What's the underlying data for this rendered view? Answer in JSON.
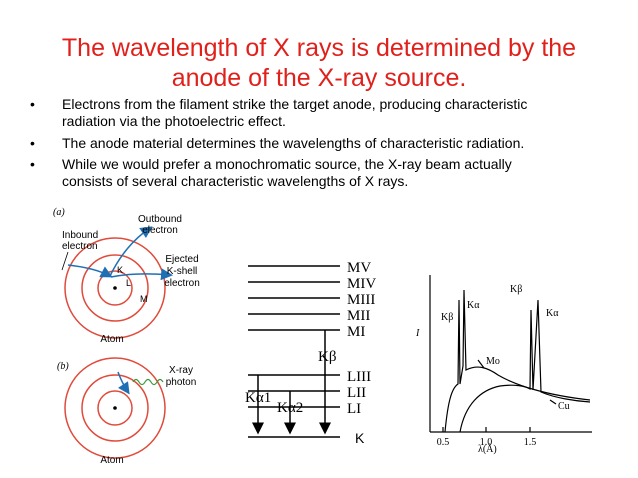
{
  "title": {
    "lines": [
      "The wavelength of X rays is determined by the",
      "anode of the X-ray source."
    ]
  },
  "bullets": [
    {
      "lines": [
        "Electrons from the filament strike the target anode, producing characteristic",
        "radiation via the photoelectric effect."
      ]
    },
    {
      "lines": [
        "The anode material determines the wavelengths of characteristic radiation."
      ]
    },
    {
      "lines": [
        "While we would prefer a monochromatic source, the X-ray beam actually",
        "consists of several characteristic wavelengths of X rays."
      ]
    }
  ],
  "diagram_a": {
    "tag": "(a)",
    "inbound": [
      "Inbound",
      "electron"
    ],
    "outbound": [
      "Outbound",
      "electron"
    ],
    "ejected": [
      "Ejected",
      "K-shell",
      "electron"
    ],
    "shells": [
      "K",
      "L",
      "M"
    ],
    "atom": "Atom"
  },
  "diagram_b": {
    "tag": "(b)",
    "photon": [
      "X-ray",
      "photon"
    ],
    "atom": "Atom"
  },
  "levels": {
    "m": [
      "MV",
      "MIV",
      "MIII",
      "MII",
      "MI"
    ],
    "l": [
      "LIII",
      "LII",
      "LI"
    ],
    "k": "K",
    "kbeta": "Kβ",
    "ka1": "Kα1",
    "ka2": "Kα2"
  },
  "spectrum": {
    "ylabel": "I",
    "xlabel": "λ(Å)",
    "ticks": [
      "0.5",
      "1.0",
      "1.5"
    ],
    "peaks": [
      "Kβ",
      "Kα",
      "Kβ",
      "Kα"
    ],
    "mo": "Mo",
    "cu": "Cu"
  }
}
